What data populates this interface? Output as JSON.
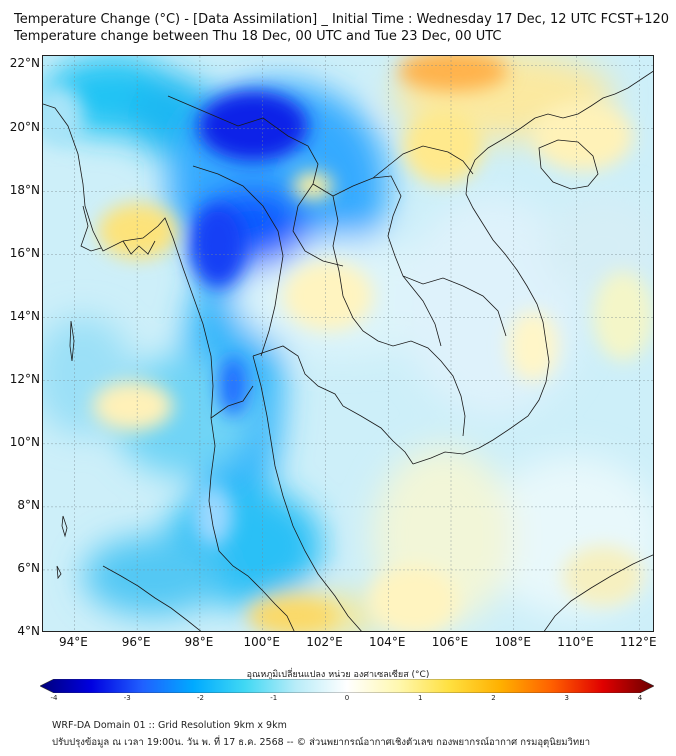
{
  "header": {
    "title_line1": "Temperature Change (°C) - [Data Assimilation] _ Initial Time : Wednesday 17 Dec, 12 UTC FCST+120",
    "title_line2": "Temperature change between Thu 18 Dec, 00 UTC and Tue 23 Dec, 00 UTC"
  },
  "map": {
    "lat_labels": [
      "22°N",
      "20°N",
      "18°N",
      "16°N",
      "14°N",
      "12°N",
      "10°N",
      "8°N",
      "6°N",
      "4°N"
    ],
    "lon_labels": [
      "94°E",
      "96°E",
      "98°E",
      "100°E",
      "102°E",
      "104°E",
      "106°E",
      "108°E",
      "110°E",
      "112°E"
    ],
    "lat_values": [
      22,
      20,
      18,
      16,
      14,
      12,
      10,
      8,
      6,
      4
    ],
    "lon_values": [
      94,
      96,
      98,
      100,
      102,
      104,
      106,
      108,
      110,
      112
    ],
    "lat_range": [
      4,
      22.3
    ],
    "lon_range": [
      93,
      112.5
    ],
    "background_color": "#cdeff9",
    "boundary_color": "#1a1a1a"
  },
  "colorbar": {
    "title": "อุณหภูมิเปลี่ยนแปลง หน่วย องศาเซลเซียส (°C)",
    "ticks": [
      "-4",
      "-3",
      "-2",
      "-1",
      "0",
      "1",
      "2",
      "3",
      "4"
    ],
    "tick_values": [
      -4,
      -3,
      -2,
      -1,
      0,
      1,
      2,
      3,
      4
    ],
    "range": [
      -4,
      4
    ],
    "colors": [
      "#00007a",
      "#0000e0",
      "#2060ff",
      "#00aaff",
      "#40d8f4",
      "#b8ecf8",
      "#ffffff",
      "#fff8b0",
      "#ffe040",
      "#ffb000",
      "#ff6000",
      "#e00000",
      "#6a0000"
    ]
  },
  "footer": {
    "line1": "WRF-DA Domain 01 :: Grid Resolution 9km x 9km",
    "line2": "ปรับปรุงข้อมูล ณ เวลา 19:00น. วัน พ. ที่ 17 ธ.ค. 2568 -- © ส่วนพยากรณ์อากาศเชิงตัวเลข กองพยากรณ์อากาศ กรมอุตุนิยมวิทยา"
  }
}
